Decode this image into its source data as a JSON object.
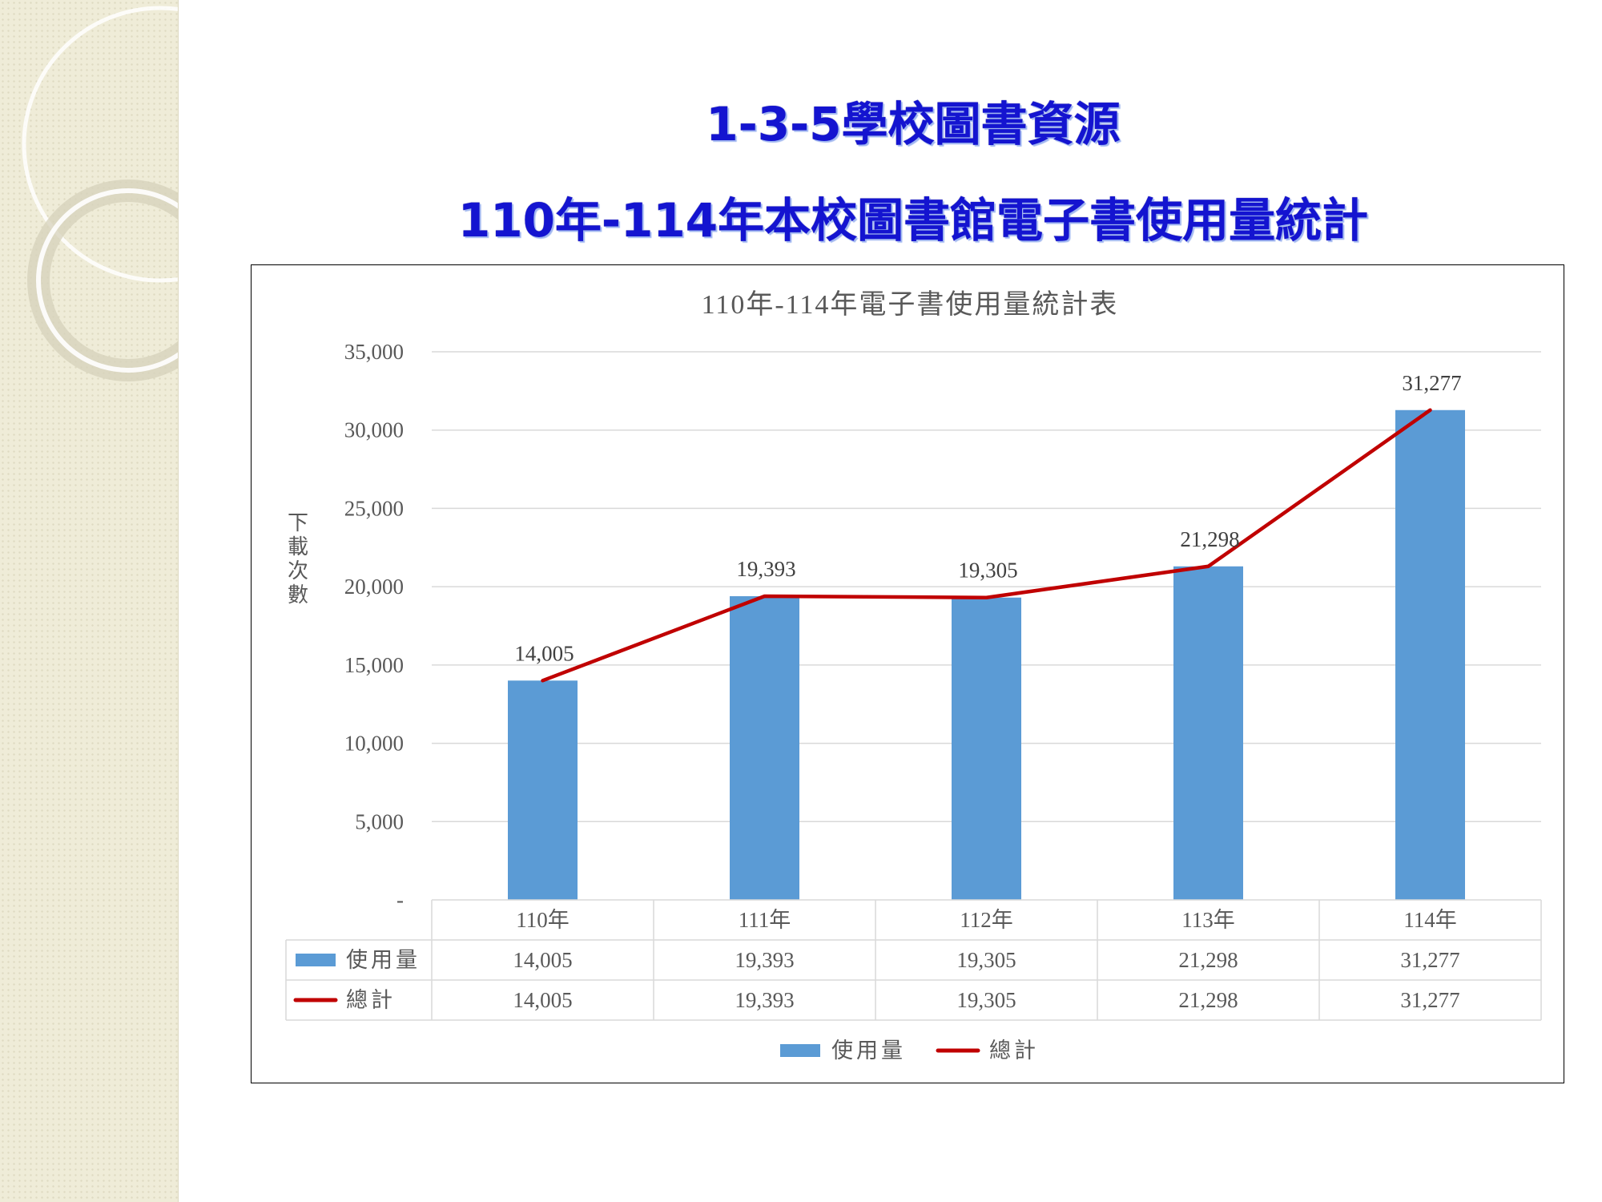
{
  "slide": {
    "title": "1-3-5學校圖書資源",
    "subtitle": "110年-114年本校圖書館電子書使用量統計"
  },
  "chart_data": {
    "type": "bar",
    "title": "110年-114年電子書使用量統計表",
    "ylabel": "下載次數",
    "xlabel": "",
    "categories": [
      "110年",
      "111年",
      "112年",
      "113年",
      "114年"
    ],
    "ylim": [
      0,
      35000
    ],
    "yticks": [
      {
        "value": 0,
        "label": "-"
      },
      {
        "value": 5000,
        "label": "5,000"
      },
      {
        "value": 10000,
        "label": "10,000"
      },
      {
        "value": 15000,
        "label": "15,000"
      },
      {
        "value": 20000,
        "label": "20,000"
      },
      {
        "value": 25000,
        "label": "25,000"
      },
      {
        "value": 30000,
        "label": "30,000"
      },
      {
        "value": 35000,
        "label": "35,000"
      }
    ],
    "grid": true,
    "legend": "bottom",
    "data_table": true,
    "series": [
      {
        "name": "使用量",
        "type": "bar",
        "color": "#5b9bd5",
        "values": [
          14005,
          19393,
          19305,
          21298,
          31277
        ],
        "labels": [
          "14,005",
          "19,393",
          "19,305",
          "21,298",
          "31,277"
        ]
      },
      {
        "name": "總計",
        "type": "line",
        "color": "#c00000",
        "values": [
          14005,
          19393,
          19305,
          21298,
          31277
        ],
        "labels": [
          "14,005",
          "19,393",
          "19,305",
          "21,298",
          "31,277"
        ]
      }
    ]
  }
}
